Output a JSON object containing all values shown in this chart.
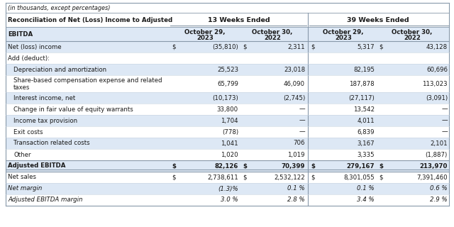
{
  "subtitle": "(in thousands, except percentages)",
  "header_group1": "13 Weeks Ended",
  "header_group2": "39 Weeks Ended",
  "col_headers": [
    "October 29,\n2023",
    "October 30,\n2022",
    "October 29,\n2023",
    "October 30,\n2022"
  ],
  "row_label_col_line1": "Reconciliation of Net (Loss) Income to Adjusted",
  "row_label_col_line2": "EBITDA",
  "rows": [
    {
      "label": "Net (loss) income",
      "vals": [
        "$",
        "(35,810)",
        "$",
        "2,311",
        "$",
        "5,317",
        "$",
        "43,128"
      ],
      "bold": false,
      "italic": false,
      "indent": 0,
      "bg": "#dde8f5"
    },
    {
      "label": "Add (deduct):",
      "vals": [
        "",
        "",
        "",
        "",
        "",
        "",
        "",
        ""
      ],
      "bold": false,
      "italic": false,
      "indent": 0,
      "bg": "#ffffff"
    },
    {
      "label": "Depreciation and amortization",
      "vals": [
        "",
        "25,523",
        "",
        "23,018",
        "",
        "82,195",
        "",
        "60,696"
      ],
      "bold": false,
      "italic": false,
      "indent": 1,
      "bg": "#dde8f5"
    },
    {
      "label": "Share-based compensation expense and related\ntaxes",
      "vals": [
        "",
        "65,799",
        "",
        "46,090",
        "",
        "187,878",
        "",
        "113,023"
      ],
      "bold": false,
      "italic": false,
      "indent": 1,
      "bg": "#ffffff"
    },
    {
      "label": "Interest income, net",
      "vals": [
        "",
        "(10,173)",
        "",
        "(2,745)",
        "",
        "(27,117)",
        "",
        "(3,091)"
      ],
      "bold": false,
      "italic": false,
      "indent": 1,
      "bg": "#dde8f5"
    },
    {
      "label": "Change in fair value of equity warrants",
      "vals": [
        "",
        "33,800",
        "",
        "—",
        "",
        "13,542",
        "",
        "—"
      ],
      "bold": false,
      "italic": false,
      "indent": 1,
      "bg": "#ffffff"
    },
    {
      "label": "Income tax provision",
      "vals": [
        "",
        "1,704",
        "",
        "—",
        "",
        "4,011",
        "",
        "—"
      ],
      "bold": false,
      "italic": false,
      "indent": 1,
      "bg": "#dde8f5"
    },
    {
      "label": "Exit costs",
      "vals": [
        "",
        "(778)",
        "",
        "—",
        "",
        "6,839",
        "",
        "—"
      ],
      "bold": false,
      "italic": false,
      "indent": 1,
      "bg": "#ffffff"
    },
    {
      "label": "Transaction related costs",
      "vals": [
        "",
        "1,041",
        "",
        "706",
        "",
        "3,167",
        "",
        "2,101"
      ],
      "bold": false,
      "italic": false,
      "indent": 1,
      "bg": "#dde8f5"
    },
    {
      "label": "Other",
      "vals": [
        "",
        "1,020",
        "",
        "1,019",
        "",
        "3,335",
        "",
        "(1,887)"
      ],
      "bold": false,
      "italic": false,
      "indent": 1,
      "bg": "#ffffff"
    },
    {
      "label": "Adjusted EBITDA",
      "vals": [
        "$",
        "82,126",
        "$",
        "70,399",
        "$",
        "279,167",
        "$",
        "213,970"
      ],
      "bold": true,
      "italic": false,
      "indent": 0,
      "bg": "#dde8f5",
      "double_line": true
    },
    {
      "label": "Net sales",
      "vals": [
        "$",
        "2,738,611",
        "$",
        "2,532,122",
        "$",
        "8,301,055",
        "$",
        "7,391,460"
      ],
      "bold": false,
      "italic": false,
      "indent": 0,
      "bg": "#ffffff"
    },
    {
      "label": "Net margin",
      "vals": [
        "",
        "(1.3)%",
        "",
        "0.1 %",
        "",
        "0.1 %",
        "",
        "0.6 %"
      ],
      "bold": false,
      "italic": true,
      "indent": 0,
      "bg": "#dde8f5"
    },
    {
      "label": "Adjusted EBITDA margin",
      "vals": [
        "",
        "3.0 %",
        "",
        "2.8 %",
        "",
        "3.4 %",
        "",
        "2.9 %"
      ],
      "bold": false,
      "italic": true,
      "indent": 0,
      "bg": "#ffffff"
    }
  ],
  "bg_color": "#ffffff",
  "header_bg": "#dde8f5",
  "text_color": "#1a1a1a",
  "line_color": "#8899aa",
  "font_size": 6.2,
  "header_font_size": 6.8
}
